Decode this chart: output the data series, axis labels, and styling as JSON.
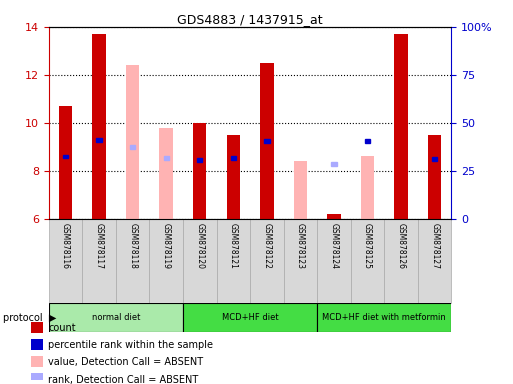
{
  "title": "GDS4883 / 1437915_at",
  "samples": [
    "GSM878116",
    "GSM878117",
    "GSM878118",
    "GSM878119",
    "GSM878120",
    "GSM878121",
    "GSM878122",
    "GSM878123",
    "GSM878124",
    "GSM878125",
    "GSM878126",
    "GSM878127"
  ],
  "count_values": [
    10.7,
    13.7,
    null,
    null,
    10.0,
    9.5,
    12.5,
    null,
    6.2,
    null,
    13.7,
    9.5
  ],
  "absent_value": [
    null,
    null,
    12.4,
    9.8,
    null,
    null,
    null,
    8.4,
    null,
    8.6,
    null,
    null
  ],
  "percentile_present": [
    8.6,
    9.3,
    null,
    null,
    8.45,
    8.55,
    9.25,
    null,
    null,
    9.25,
    null,
    8.5
  ],
  "percentile_absent": [
    null,
    null,
    9.0,
    8.55,
    null,
    null,
    null,
    null,
    8.3,
    null,
    null,
    null
  ],
  "ylim_left": [
    6,
    14
  ],
  "ylim_right": [
    0,
    100
  ],
  "yticks_left": [
    6,
    8,
    10,
    12,
    14
  ],
  "yticks_right": [
    0,
    25,
    50,
    75,
    100
  ],
  "ytick_right_labels": [
    "0",
    "25",
    "50",
    "75",
    "100%"
  ],
  "group_defs": [
    {
      "start": 0,
      "end": 3,
      "label": "normal diet",
      "color": "#aaeaaa"
    },
    {
      "start": 4,
      "end": 7,
      "label": "MCD+HF diet",
      "color": "#44dd44"
    },
    {
      "start": 8,
      "end": 11,
      "label": "MCD+HF diet with metformin",
      "color": "#44dd44"
    }
  ],
  "bar_width": 0.4,
  "count_color": "#cc0000",
  "absent_val_color": "#ffb3b3",
  "percentile_present_color": "#0000cc",
  "percentile_absent_color": "#aaaaff",
  "tick_label_color_left": "#cc0000",
  "tick_label_color_right": "#0000cc",
  "legend_items": [
    {
      "label": "count",
      "color": "#cc0000"
    },
    {
      "label": "percentile rank within the sample",
      "color": "#0000cc"
    },
    {
      "label": "value, Detection Call = ABSENT",
      "color": "#ffb3b3"
    },
    {
      "label": "rank, Detection Call = ABSENT",
      "color": "#aaaaff"
    }
  ],
  "figsize": [
    5.13,
    3.84
  ],
  "dpi": 100
}
